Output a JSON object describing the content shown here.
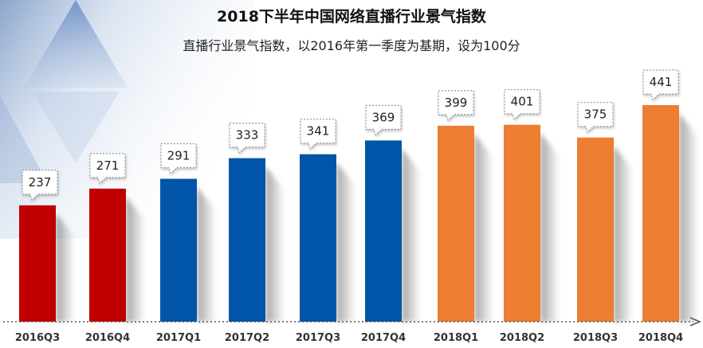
{
  "chart_data": {
    "type": "bar",
    "title": "2018下半年中国网络直播行业景气指数",
    "subtitle": "直播行业景气指数，以2016年第一季度为基期，设为100分",
    "xlabel": "",
    "ylabel": "",
    "categories": [
      "2016Q3",
      "2016Q4",
      "2017Q1",
      "2017Q2",
      "2017Q3",
      "2017Q4",
      "2018Q1",
      "2018Q2",
      "2018Q3",
      "2018Q4"
    ],
    "values": [
      237,
      271,
      291,
      333,
      341,
      369,
      399,
      401,
      375,
      441
    ],
    "ylim": [
      0,
      480
    ],
    "grid": false,
    "legend": "none",
    "bar_colors": [
      "#C00000",
      "#C00000",
      "#0055A8",
      "#0055A8",
      "#0055A8",
      "#0055A8",
      "#ED7D31",
      "#ED7D31",
      "#ED7D31",
      "#ED7D31"
    ]
  }
}
